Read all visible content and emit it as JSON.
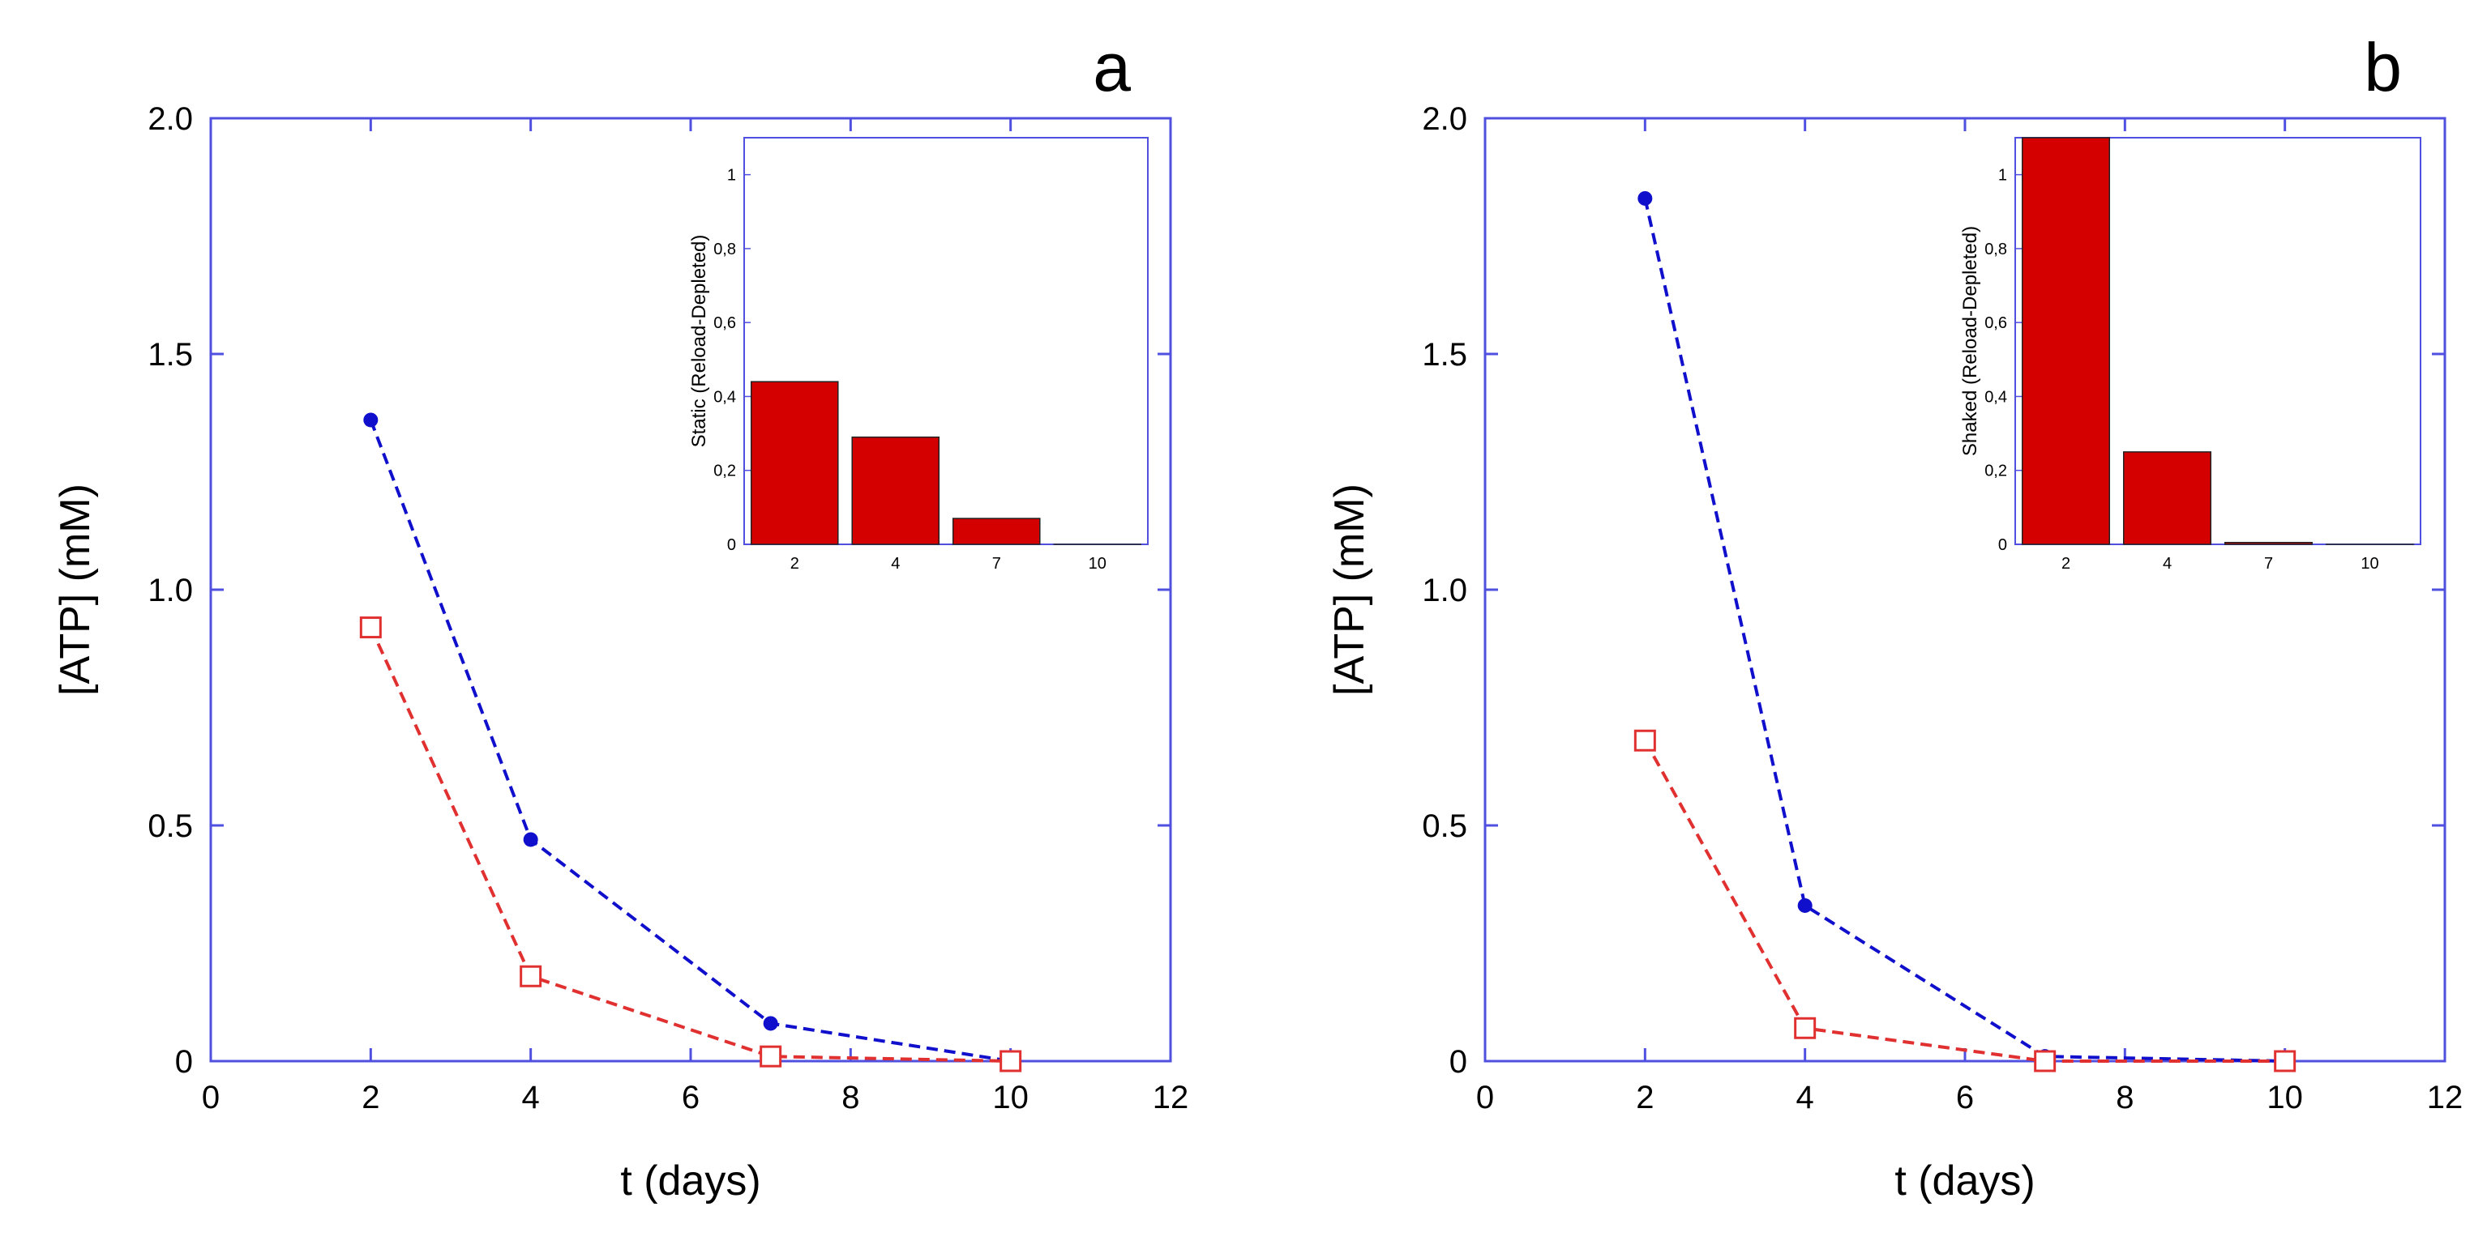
{
  "chart_data": [
    {
      "type": "line",
      "panel_label": "a",
      "xlabel": "t  (days)",
      "ylabel": "[ATP]  (mM)",
      "xlim": [
        0,
        12
      ],
      "ylim": [
        0,
        2.0
      ],
      "x_ticks": [
        0,
        2,
        4,
        6,
        8,
        10,
        12
      ],
      "x_tick_labels": [
        "0",
        "2",
        "4",
        "6",
        "8",
        "10",
        "12"
      ],
      "y_ticks": [
        0,
        0.5,
        1.0,
        1.5,
        2.0
      ],
      "y_tick_labels": [
        "0",
        "0.5",
        "1.0",
        "1.5",
        "2.0"
      ],
      "grid": false,
      "series": [
        {
          "color": "#1010cc",
          "marker": "filled-circle",
          "line": "dashed",
          "x": [
            2,
            4,
            7,
            10
          ],
          "y": [
            1.36,
            0.47,
            0.08,
            0.0
          ]
        },
        {
          "color": "#e03030",
          "marker": "open-square",
          "line": "dashed",
          "x": [
            2,
            4,
            7,
            10
          ],
          "y": [
            0.92,
            0.18,
            0.01,
            0.0
          ]
        }
      ],
      "inset": {
        "type": "bar",
        "ylabel": "Static (Reload-Depleted)",
        "categories": [
          "2",
          "4",
          "7",
          "10"
        ],
        "values": [
          0.44,
          0.29,
          0.07,
          0.0
        ],
        "ylim": [
          0,
          1.1
        ],
        "y_ticks": [
          0,
          0.2,
          0.4,
          0.6,
          0.8,
          1.0
        ],
        "y_tick_labels": [
          "0",
          "0,2",
          "0,4",
          "0,6",
          "0,8",
          "1"
        ],
        "bar_color": "#d40000"
      }
    },
    {
      "type": "line",
      "panel_label": "b",
      "xlabel": "t  (days)",
      "ylabel": "[ATP]  (mM)",
      "xlim": [
        0,
        12
      ],
      "ylim": [
        0,
        2.0
      ],
      "x_ticks": [
        0,
        2,
        4,
        6,
        8,
        10,
        12
      ],
      "x_tick_labels": [
        "0",
        "2",
        "4",
        "6",
        "8",
        "10",
        "12"
      ],
      "y_ticks": [
        0,
        0.5,
        1.0,
        1.5,
        2.0
      ],
      "y_tick_labels": [
        "0",
        "0.5",
        "1.0",
        "1.5",
        "2.0"
      ],
      "grid": false,
      "series": [
        {
          "color": "#1010cc",
          "marker": "filled-circle",
          "line": "dashed",
          "x": [
            2,
            4,
            7,
            10
          ],
          "y": [
            1.83,
            0.33,
            0.01,
            0.0
          ]
        },
        {
          "color": "#e03030",
          "marker": "open-square",
          "line": "dashed",
          "x": [
            2,
            4,
            7,
            10
          ],
          "y": [
            0.68,
            0.07,
            0.0,
            0.0
          ]
        }
      ],
      "inset": {
        "type": "bar",
        "ylabel": "Shaked (Reload-Depleted)",
        "categories": [
          "2",
          "4",
          "7",
          "10"
        ],
        "values": [
          1.1,
          0.25,
          0.005,
          0.0
        ],
        "ylim": [
          0,
          1.1
        ],
        "y_ticks": [
          0,
          0.2,
          0.4,
          0.6,
          0.8,
          1.0
        ],
        "y_tick_labels": [
          "0",
          "0,2",
          "0,4",
          "0,6",
          "0,8",
          "1"
        ],
        "bar_color": "#d40000"
      }
    }
  ]
}
